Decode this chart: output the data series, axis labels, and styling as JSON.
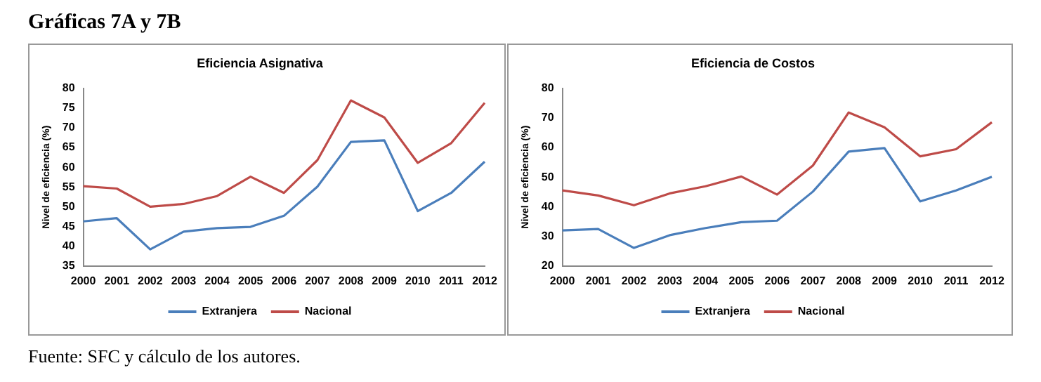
{
  "chart_data": [
    {
      "type": "line",
      "title": "Eficiencia Asignativa",
      "ylabel": "Nivel de eficiencia (%)",
      "annotations": [
        "Gráficas 7A y 7B",
        "Fuente: SFC y cálculo de los autores."
      ],
      "categories": [
        "2000",
        "2001",
        "2002",
        "2003",
        "2004",
        "2005",
        "2006",
        "2007",
        "2008",
        "2009",
        "2010",
        "2011",
        "2012"
      ],
      "series": [
        {
          "name": "Extranjera",
          "color": "#4a7ebb",
          "values": [
            46.3,
            47.1,
            39.2,
            43.7,
            44.6,
            44.9,
            47.7,
            55.1,
            66.4,
            66.8,
            48.9,
            53.5,
            61.4
          ]
        },
        {
          "name": "Nacional",
          "color": "#be4b48",
          "values": [
            55.2,
            54.6,
            50.0,
            50.7,
            52.7,
            57.6,
            53.5,
            61.8,
            76.9,
            72.6,
            61.1,
            66.1,
            76.3
          ]
        }
      ],
      "ylim": [
        35,
        80
      ],
      "yticks": [
        35,
        40,
        45,
        50,
        55,
        60,
        65,
        70,
        75,
        80
      ],
      "grid": false,
      "legend": "bottom",
      "marker": "none"
    },
    {
      "type": "line",
      "title": "Eficiencia de Costos",
      "ylabel": "Nivel de eficiencia (%)",
      "categories": [
        "2000",
        "2001",
        "2002",
        "2003",
        "2004",
        "2005",
        "2006",
        "2007",
        "2008",
        "2009",
        "2010",
        "2011",
        "2012"
      ],
      "series": [
        {
          "name": "Extranjera",
          "color": "#4a7ebb",
          "values": [
            32.0,
            32.5,
            26.1,
            30.4,
            32.8,
            34.8,
            35.3,
            45.1,
            58.6,
            59.8,
            41.8,
            45.5,
            50.1
          ]
        },
        {
          "name": "Nacional",
          "color": "#be4b48",
          "values": [
            45.5,
            43.8,
            40.5,
            44.5,
            46.9,
            50.2,
            44.1,
            53.9,
            71.8,
            66.8,
            57.0,
            59.4,
            68.5
          ]
        }
      ],
      "ylim": [
        20,
        80
      ],
      "yticks": [
        20,
        30,
        40,
        50,
        60,
        70,
        80
      ],
      "grid": false,
      "legend": "bottom",
      "marker": "none"
    }
  ]
}
